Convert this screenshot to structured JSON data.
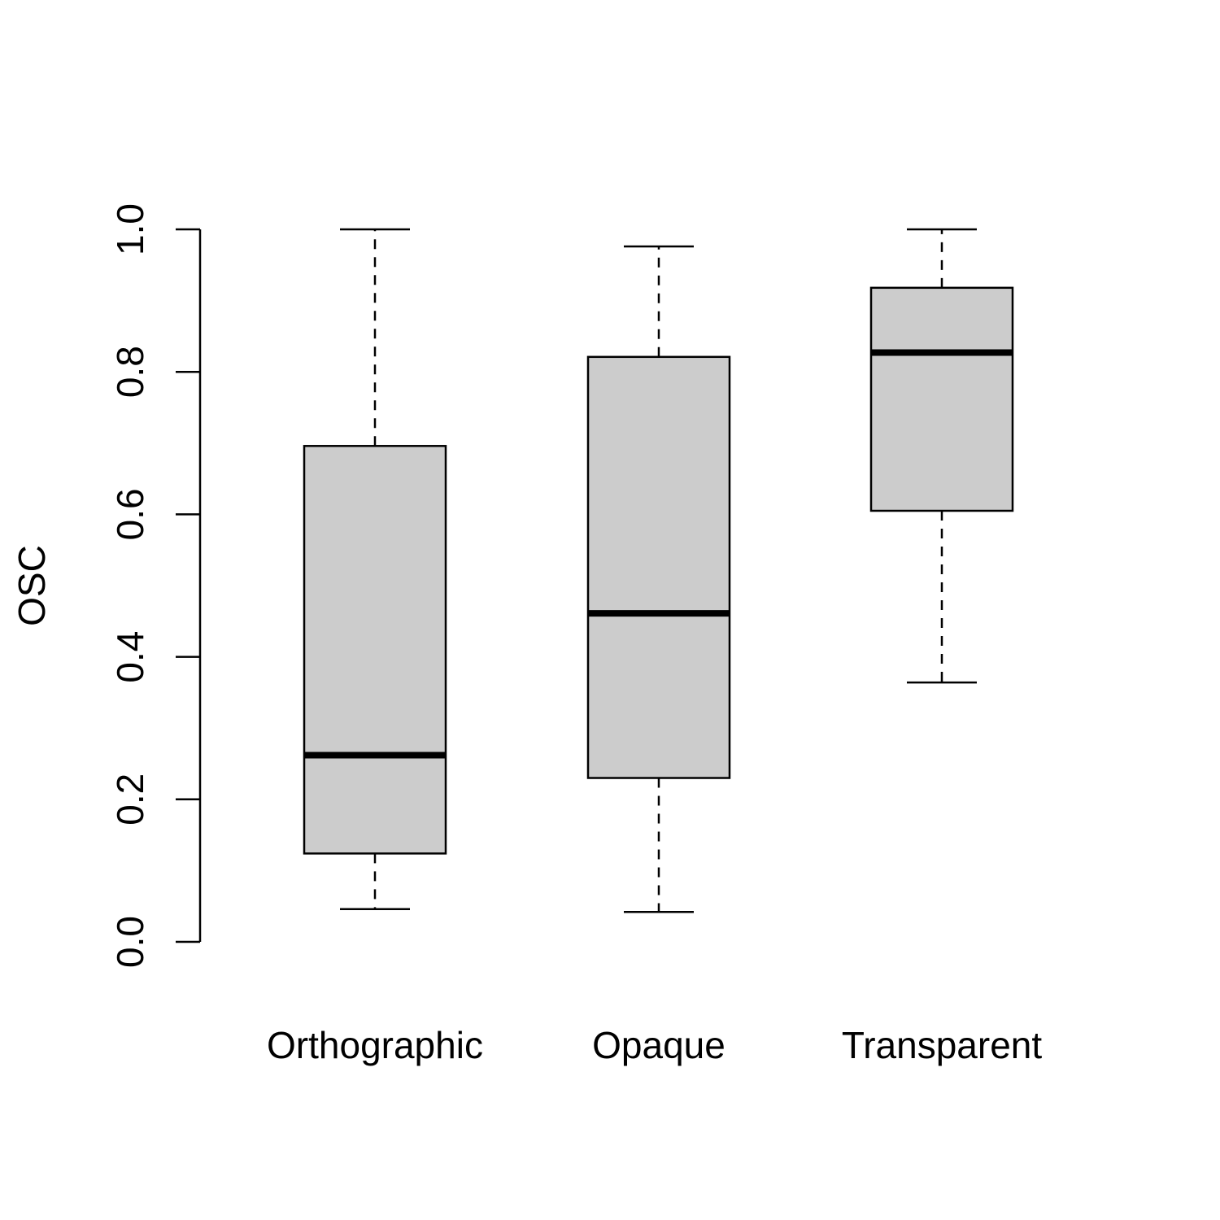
{
  "chart_data": {
    "type": "boxplot",
    "title": "",
    "xlabel": "",
    "ylabel": "OSC",
    "ylim": [
      0,
      1
    ],
    "yticks": [
      "0.0",
      "0.2",
      "0.4",
      "0.6",
      "0.8",
      "1.0"
    ],
    "grid": false,
    "colors": {
      "box_fill": "#cccccc",
      "stroke": "#000000"
    },
    "categories": [
      "Orthographic",
      "Opaque",
      "Transparent"
    ],
    "boxes": [
      {
        "category": "Orthographic",
        "whisker_low": 0.046,
        "q1": 0.124,
        "median": 0.262,
        "q3": 0.696,
        "whisker_high": 1.0
      },
      {
        "category": "Opaque",
        "whisker_low": 0.042,
        "q1": 0.23,
        "median": 0.461,
        "q3": 0.821,
        "whisker_high": 0.976
      },
      {
        "category": "Transparent",
        "whisker_low": 0.364,
        "q1": 0.605,
        "median": 0.827,
        "q3": 0.918,
        "whisker_high": 1.0
      }
    ]
  }
}
